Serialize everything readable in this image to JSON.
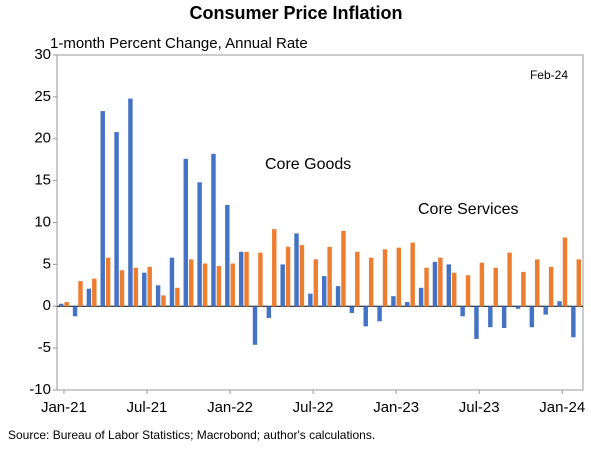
{
  "chart_data": {
    "type": "bar",
    "title": "Consumer Price Inflation",
    "subtitle": "1-month Percent Change, Annual Rate",
    "annotations": {
      "date": "Feb-24",
      "source": "Source: Bureau of Labor Statistics; Macrobond; author's calculations."
    },
    "categories": [
      "Jan-21",
      null,
      null,
      null,
      null,
      null,
      "Jul-21",
      null,
      null,
      null,
      null,
      null,
      "Jan-22",
      null,
      null,
      null,
      null,
      null,
      "Jul-22",
      null,
      null,
      null,
      null,
      null,
      "Jan-23",
      null,
      null,
      null,
      null,
      null,
      "Jul-23",
      null,
      null,
      null,
      null,
      null,
      "Jan-24",
      null
    ],
    "series": [
      {
        "name": "Core Goods",
        "color": "#4472c4",
        "values": [
          0.3,
          -1.2,
          2.1,
          23.3,
          20.8,
          24.8,
          4.0,
          2.5,
          5.8,
          17.6,
          14.8,
          18.2,
          12.1,
          6.5,
          -4.6,
          -1.4,
          5.0,
          8.7,
          1.5,
          3.6,
          2.4,
          -0.8,
          -2.4,
          -1.8,
          1.2,
          0.5,
          2.2,
          5.3,
          5.0,
          -1.2,
          -3.9,
          -2.5,
          -2.6,
          -0.3,
          -2.5,
          -1.0,
          0.6,
          -3.7
        ]
      },
      {
        "name": "Core Services",
        "color": "#ed7d31",
        "values": [
          0.5,
          3.0,
          3.3,
          5.8,
          4.3,
          4.6,
          4.7,
          1.3,
          2.2,
          5.6,
          5.1,
          4.8,
          5.1,
          6.5,
          6.4,
          9.2,
          7.1,
          7.3,
          5.6,
          7.1,
          9.0,
          6.5,
          5.8,
          6.8,
          7.0,
          7.6,
          4.6,
          5.8,
          4.0,
          3.7,
          5.2,
          4.6,
          6.4,
          4.1,
          5.6,
          4.7,
          8.2,
          5.6
        ]
      }
    ],
    "ylim": [
      -10,
      30
    ],
    "yticks": [
      -10,
      -5,
      0,
      5,
      10,
      15,
      20,
      25,
      30
    ]
  }
}
